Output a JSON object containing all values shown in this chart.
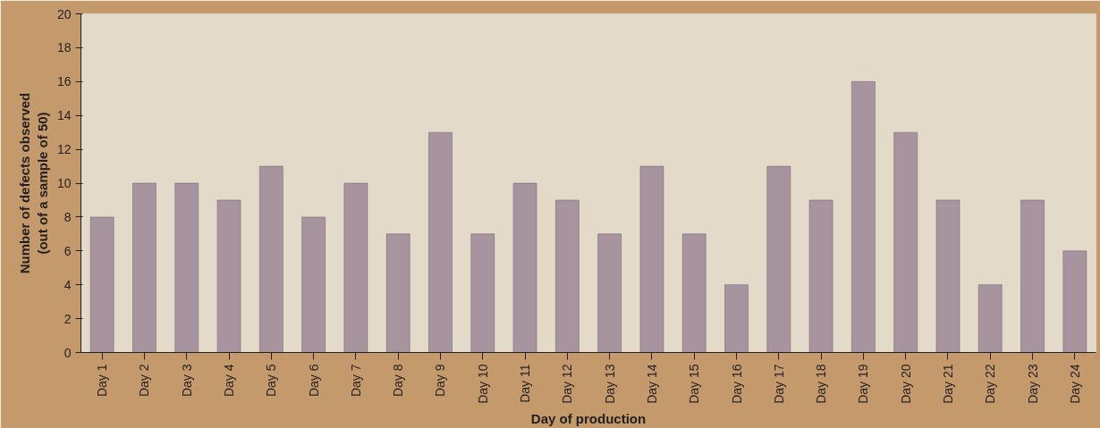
{
  "chart_data": {
    "type": "bar",
    "xlabel": "Day of production",
    "ylabel": "Number of defects observed\n(out of a sample of 50)",
    "categories": [
      "Day 1",
      "Day 2",
      "Day 3",
      "Day 4",
      "Day 5",
      "Day 6",
      "Day 7",
      "Day 8",
      "Day 9",
      "Day 10",
      "Day 11",
      "Day 12",
      "Day 13",
      "Day 14",
      "Day 15",
      "Day 16",
      "Day 17",
      "Day 18",
      "Day 19",
      "Day 20",
      "Day 21",
      "Day 22",
      "Day 23",
      "Day 24"
    ],
    "values": [
      8,
      10,
      10,
      9,
      11,
      8,
      10,
      7,
      13,
      7,
      10,
      9,
      7,
      11,
      7,
      4,
      11,
      9,
      16,
      13,
      9,
      4,
      9,
      6
    ],
    "color": "#a8949f",
    "ylim": [
      0,
      20
    ],
    "yticks": [
      0,
      2,
      4,
      6,
      8,
      10,
      12,
      14,
      16,
      18,
      20
    ],
    "grid": false
  }
}
